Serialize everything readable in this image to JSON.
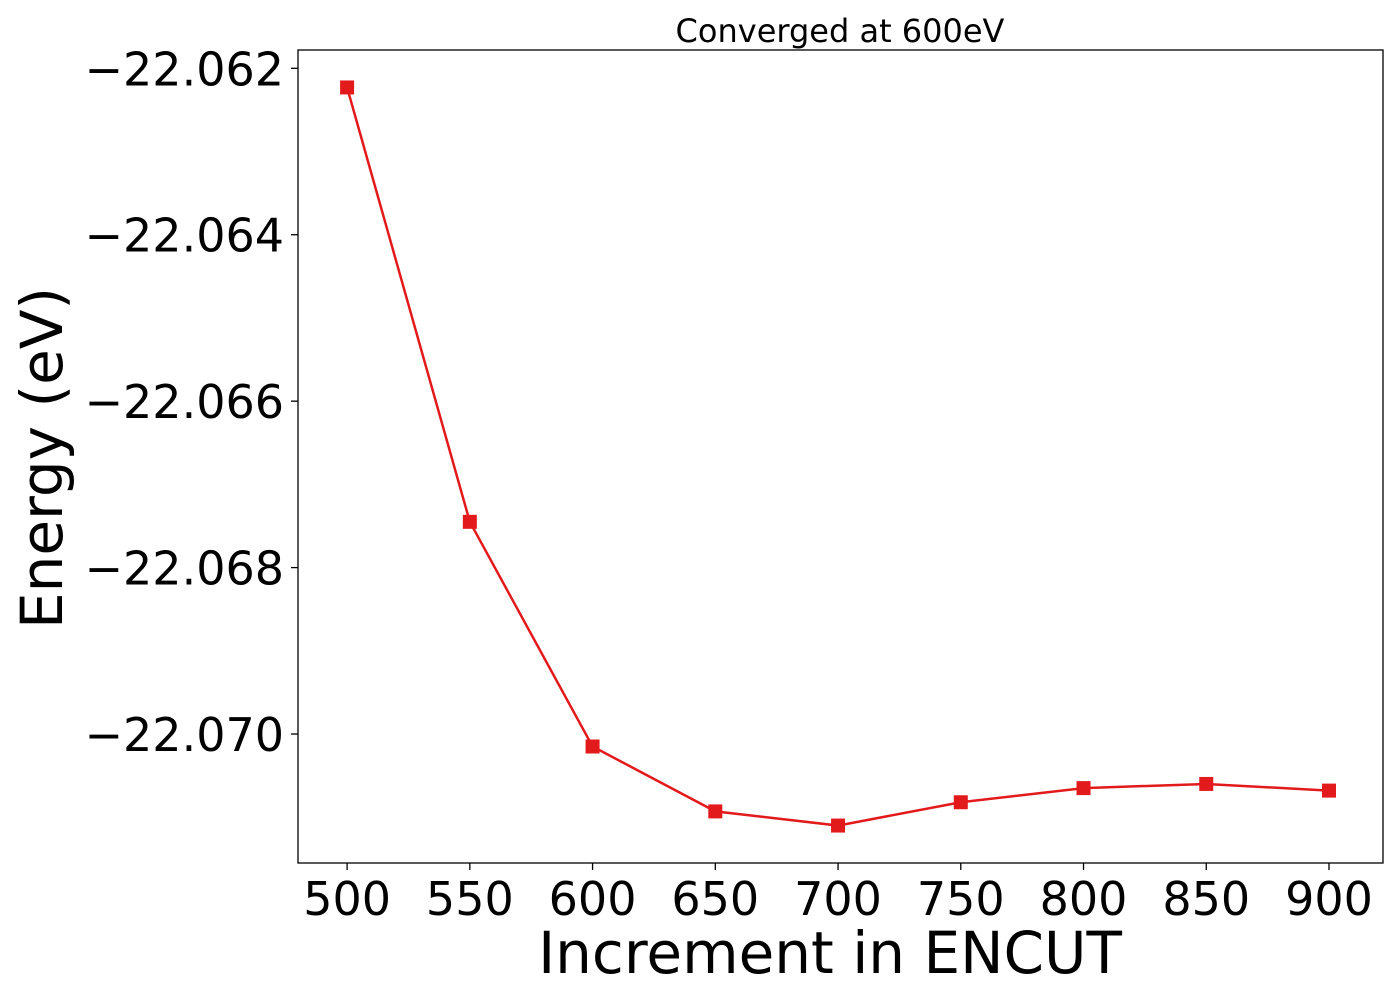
{
  "chart_data": {
    "type": "line",
    "title": "Converged at 600eV",
    "xlabel": "Increment in ENCUT",
    "ylabel": "Energy (eV)",
    "x": [
      500,
      550,
      600,
      650,
      700,
      750,
      800,
      850,
      900
    ],
    "series": [
      {
        "values": [
          -22.06223,
          -22.06745,
          -22.07015,
          -22.07093,
          -22.0711,
          -22.07082,
          -22.07065,
          -22.0706,
          -22.07068
        ],
        "color": "#e31a1c",
        "marker": "square"
      }
    ],
    "xlim": [
      480,
      922
    ],
    "ylim": [
      -22.07155,
      -22.06178
    ],
    "xticks": [
      500,
      550,
      600,
      650,
      700,
      750,
      800,
      850,
      900
    ],
    "yticks": [
      -22.062,
      -22.064,
      -22.066,
      -22.068,
      -22.07
    ],
    "ytick_labels": [
      "−22.062",
      "−22.064",
      "−22.066",
      "−22.068",
      "−22.070"
    ],
    "grid": false,
    "legend": "none"
  }
}
